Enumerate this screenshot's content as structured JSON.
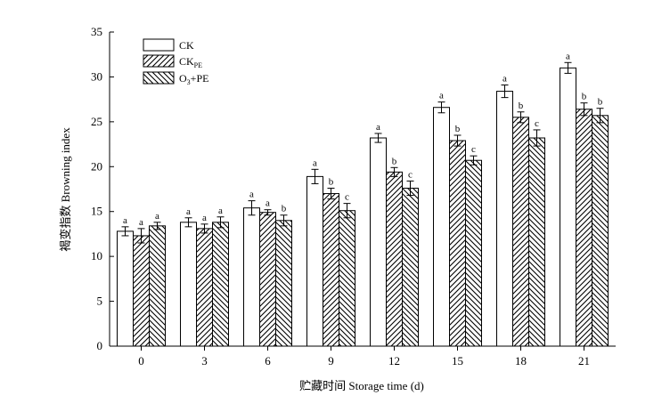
{
  "chart_data": {
    "type": "bar",
    "xlabel": "贮藏时间 Storage time (d)",
    "ylabel": "褐变指数 Browning index",
    "ylim": [
      0,
      35
    ],
    "yticks": [
      0,
      5,
      10,
      15,
      20,
      25,
      30,
      35
    ],
    "categories": [
      "0",
      "3",
      "6",
      "9",
      "12",
      "15",
      "18",
      "21"
    ],
    "legend_position": "top-left",
    "series": [
      {
        "name": "CK",
        "pattern": "none",
        "values": [
          12.8,
          13.8,
          15.4,
          18.9,
          23.2,
          26.6,
          28.4,
          31.0
        ],
        "errors": [
          0.5,
          0.5,
          0.8,
          0.8,
          0.5,
          0.6,
          0.7,
          0.6
        ],
        "labels": [
          "a",
          "a",
          "a",
          "a",
          "a",
          "a",
          "a",
          "a"
        ]
      },
      {
        "name": "CK_PE",
        "name_main": "CK",
        "name_sub": "PE",
        "pattern": "forward-diagonal",
        "values": [
          12.3,
          13.1,
          14.9,
          17.0,
          19.4,
          22.9,
          25.5,
          26.4
        ],
        "errors": [
          0.8,
          0.5,
          0.3,
          0.6,
          0.5,
          0.6,
          0.6,
          0.7
        ],
        "labels": [
          "a",
          "a",
          "a",
          "b",
          "b",
          "b",
          "b",
          "b"
        ]
      },
      {
        "name": "O3+PE",
        "name_main": "O",
        "name_sub": "3",
        "name_tail": "+PE",
        "pattern": "backward-diagonal",
        "values": [
          13.4,
          13.8,
          14.0,
          15.1,
          17.6,
          20.7,
          23.2,
          25.7
        ],
        "errors": [
          0.4,
          0.6,
          0.6,
          0.8,
          0.8,
          0.5,
          0.9,
          0.8
        ],
        "labels": [
          "a",
          "a",
          "b",
          "c",
          "c",
          "c",
          "c",
          "b"
        ]
      }
    ]
  },
  "colors": {
    "axis": "#000000",
    "bar_fill": "#ffffff",
    "hatch": "#000000"
  }
}
